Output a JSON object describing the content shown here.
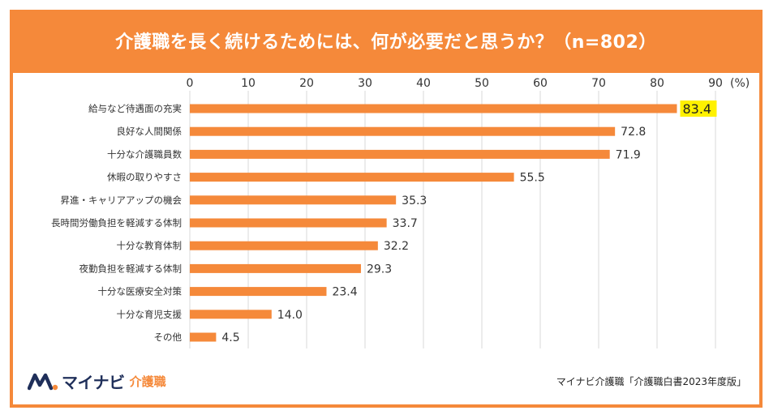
{
  "title": "介護職を長く続けるためには、何が必要だと思うか？（n=802）",
  "chart_data": {
    "type": "bar",
    "orientation": "horizontal",
    "categories": [
      "給与など待遇面の充実",
      "良好な人間関係",
      "十分な介護職員数",
      "休暇の取りやすさ",
      "昇進・キャリアアップの機会",
      "長時間労働負担を軽減する体制",
      "十分な教育体制",
      "夜勤負担を軽減する体制",
      "十分な医療安全対策",
      "十分な育児支援",
      "その他"
    ],
    "values": [
      83.4,
      72.8,
      71.9,
      55.5,
      35.3,
      33.7,
      32.2,
      29.3,
      23.4,
      14.0,
      4.5
    ],
    "value_labels": [
      "83.4",
      "72.8",
      "71.9",
      "55.5",
      "35.3",
      "33.7",
      "32.2",
      "29.3",
      "23.4",
      "14.0",
      "4.5"
    ],
    "xticks": [
      0,
      10,
      20,
      30,
      40,
      50,
      60,
      70,
      80,
      90
    ],
    "xlim": [
      0,
      90
    ],
    "unit_label": "(%)",
    "highlight_index": 0,
    "grid": true,
    "bar_color": "#f5893a",
    "highlight_color": "#fff100",
    "grid_color": "#d9d9d9"
  },
  "logo": {
    "brand": "マイナビ",
    "sub": "介護職",
    "icon": "mynavi-logo-icon"
  },
  "source": "マイナビ介護職「介護職白書2023年度版」"
}
